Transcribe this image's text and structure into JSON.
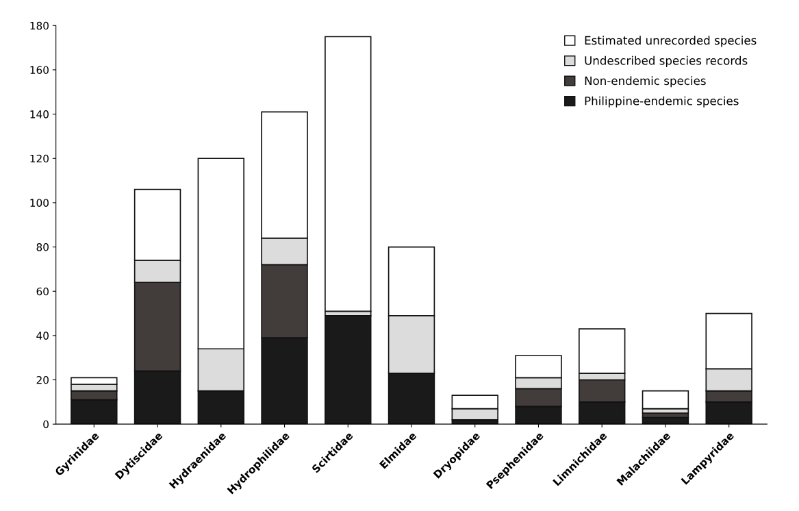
{
  "chart_data": {
    "type": "bar",
    "stacked": true,
    "categories": [
      "Gyrinidae",
      "Dytiscidae",
      "Hydraenidae",
      "Hydrophilidae",
      "Scirtidae",
      "Elmidae",
      "Dryopidae",
      "Psephenidae",
      "Limnichidae",
      "Malachiidae",
      "Lampyridae"
    ],
    "series": [
      {
        "name": "Philippine-endemic species",
        "color": "#1a1a1a",
        "values": [
          11,
          24,
          15,
          39,
          49,
          23,
          2,
          8,
          10,
          3,
          10
        ]
      },
      {
        "name": "Non-endemic species",
        "color": "#423c3a",
        "values": [
          4,
          40,
          0,
          33,
          0,
          0,
          0,
          8,
          10,
          2,
          5
        ]
      },
      {
        "name": "Undescribed species records",
        "color": "#dcdcdc",
        "values": [
          3,
          10,
          19,
          12,
          2,
          26,
          5,
          5,
          3,
          2,
          10
        ]
      },
      {
        "name": "Estimated unrecorded species",
        "color": "#ffffff",
        "values": [
          3,
          32,
          86,
          57,
          124,
          31,
          6,
          10,
          20,
          8,
          25
        ]
      }
    ],
    "ylim": [
      0,
      180
    ],
    "yticks": [
      0,
      20,
      40,
      60,
      80,
      100,
      120,
      140,
      160,
      180
    ],
    "grid": false,
    "legend": "top right"
  }
}
